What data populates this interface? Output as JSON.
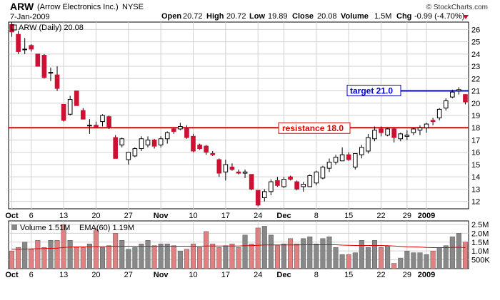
{
  "header": {
    "symbol": "ARW",
    "company": "(Arrow Electronics Inc.)",
    "exchange": "NYSE",
    "date": "7-Jan-2009",
    "open_label": "Open",
    "open": "20.72",
    "high_label": "High",
    "high": "20.72",
    "low_label": "Low",
    "low": "19.89",
    "close_label": "Close",
    "close": "20.08",
    "volume_label": "Volume",
    "volume": "1.5M",
    "chg_label": "Chg",
    "chg": "-0.99 (-4.70%)",
    "brand": "© StockCharts.com"
  },
  "colors": {
    "up_body": "#ffffff",
    "down_body": "#cc1133",
    "candle_edge": "#000000",
    "resistance": "#dd0000",
    "target": "#0000cc",
    "grid": "#d0d0d0",
    "vol_up": "#888888",
    "vol_down": "#e08080",
    "ema": "#dd0000"
  },
  "chart_data": [
    {
      "type": "candlestick",
      "legend": "ARW (Daily) 20.08",
      "ylim": [
        11.4,
        26.6
      ],
      "y_ticks": [
        "12",
        "13",
        "14",
        "15",
        "16",
        "17",
        "18",
        "19",
        "20",
        "21",
        "22",
        "23",
        "24",
        "25",
        "26"
      ],
      "x_ticks": [
        {
          "label": "Oct",
          "index": 0,
          "bold": true
        },
        {
          "label": "6",
          "index": 3,
          "bold": false
        },
        {
          "label": "13",
          "index": 8,
          "bold": false
        },
        {
          "label": "20",
          "index": 13,
          "bold": false
        },
        {
          "label": "27",
          "index": 18,
          "bold": false
        },
        {
          "label": "Nov",
          "index": 23,
          "bold": true
        },
        {
          "label": "10",
          "index": 28,
          "bold": false
        },
        {
          "label": "17",
          "index": 33,
          "bold": false
        },
        {
          "label": "24",
          "index": 38,
          "bold": false
        },
        {
          "label": "Dec",
          "index": 42,
          "bold": true
        },
        {
          "label": "8",
          "index": 47,
          "bold": false
        },
        {
          "label": "15",
          "index": 52,
          "bold": false
        },
        {
          "label": "22",
          "index": 57,
          "bold": false
        },
        {
          "label": "29",
          "index": 61,
          "bold": false
        },
        {
          "label": "2009",
          "index": 64,
          "bold": true
        }
      ],
      "lines": [
        {
          "name": "resistance",
          "value": 18.0,
          "label": "resistance 18.0"
        },
        {
          "name": "target",
          "value": 21.0,
          "label": "target 21.0"
        }
      ],
      "candles": [
        {
          "o": 26.4,
          "h": 26.6,
          "l": 25.4,
          "c": 25.8
        },
        {
          "o": 25.6,
          "h": 25.9,
          "l": 24.0,
          "c": 24.2
        },
        {
          "o": 24.4,
          "h": 25.3,
          "l": 24.0,
          "c": 24.4
        },
        {
          "o": 24.7,
          "h": 24.8,
          "l": 24.2,
          "c": 24.4
        },
        {
          "o": 24.0,
          "h": 24.0,
          "l": 23.0,
          "c": 23.0
        },
        {
          "o": 23.9,
          "h": 24.0,
          "l": 22.0,
          "c": 22.1
        },
        {
          "o": 22.5,
          "h": 22.9,
          "l": 21.8,
          "c": 22.5
        },
        {
          "o": 22.3,
          "h": 23.0,
          "l": 21.0,
          "c": 21.2
        },
        {
          "o": 19.9,
          "h": 19.9,
          "l": 18.5,
          "c": 18.6
        },
        {
          "o": 19.1,
          "h": 20.6,
          "l": 19.0,
          "c": 20.3
        },
        {
          "o": 21.0,
          "h": 21.0,
          "l": 19.8,
          "c": 19.8
        },
        {
          "o": 19.4,
          "h": 19.6,
          "l": 18.7,
          "c": 18.7
        },
        {
          "o": 18.2,
          "h": 18.7,
          "l": 17.5,
          "c": 18.2
        },
        {
          "o": 18.2,
          "h": 18.5,
          "l": 18.0,
          "c": 18.0
        },
        {
          "o": 18.5,
          "h": 19.1,
          "l": 18.1,
          "c": 19.0
        },
        {
          "o": 18.9,
          "h": 19.0,
          "l": 17.9,
          "c": 18.0
        },
        {
          "o": 17.2,
          "h": 17.4,
          "l": 15.5,
          "c": 15.5
        },
        {
          "o": 16.6,
          "h": 17.2,
          "l": 16.4,
          "c": 17.1
        },
        {
          "o": 15.4,
          "h": 15.9,
          "l": 15.0,
          "c": 16.0
        },
        {
          "o": 15.7,
          "h": 16.4,
          "l": 15.6,
          "c": 16.3
        },
        {
          "o": 16.3,
          "h": 17.3,
          "l": 16.1,
          "c": 17.1
        },
        {
          "o": 16.6,
          "h": 17.3,
          "l": 16.4,
          "c": 17.0
        },
        {
          "o": 17.0,
          "h": 17.1,
          "l": 16.3,
          "c": 16.5
        },
        {
          "o": 16.6,
          "h": 17.3,
          "l": 16.4,
          "c": 17.1
        },
        {
          "o": 17.1,
          "h": 17.7,
          "l": 16.7,
          "c": 17.6
        },
        {
          "o": 17.9,
          "h": 18.0,
          "l": 17.5,
          "c": 17.7
        },
        {
          "o": 17.9,
          "h": 18.4,
          "l": 17.8,
          "c": 18.1
        },
        {
          "o": 18.0,
          "h": 18.2,
          "l": 17.1,
          "c": 17.2
        },
        {
          "o": 17.3,
          "h": 17.5,
          "l": 16.0,
          "c": 16.1
        },
        {
          "o": 16.6,
          "h": 16.7,
          "l": 16.2,
          "c": 16.3
        },
        {
          "o": 16.5,
          "h": 16.6,
          "l": 15.8,
          "c": 16.0
        },
        {
          "o": 15.9,
          "h": 16.1,
          "l": 15.7,
          "c": 15.8
        },
        {
          "o": 15.4,
          "h": 15.5,
          "l": 14.0,
          "c": 14.3
        },
        {
          "o": 14.4,
          "h": 15.4,
          "l": 13.7,
          "c": 15.0
        },
        {
          "o": 14.8,
          "h": 15.1,
          "l": 14.5,
          "c": 14.6
        },
        {
          "o": 14.4,
          "h": 14.6,
          "l": 14.2,
          "c": 14.3
        },
        {
          "o": 14.3,
          "h": 14.6,
          "l": 13.9,
          "c": 14.4
        },
        {
          "o": 14.2,
          "h": 14.2,
          "l": 12.9,
          "c": 13.0
        },
        {
          "o": 12.9,
          "h": 12.9,
          "l": 11.6,
          "c": 11.7
        },
        {
          "o": 12.3,
          "h": 13.0,
          "l": 12.0,
          "c": 12.8
        },
        {
          "o": 12.8,
          "h": 13.8,
          "l": 12.5,
          "c": 13.6
        },
        {
          "o": 13.7,
          "h": 14.0,
          "l": 13.2,
          "c": 13.3
        },
        {
          "o": 13.2,
          "h": 14.0,
          "l": 13.1,
          "c": 13.8
        },
        {
          "o": 14.0,
          "h": 14.1,
          "l": 13.7,
          "c": 13.8
        },
        {
          "o": 13.6,
          "h": 13.7,
          "l": 12.9,
          "c": 13.0
        },
        {
          "o": 13.2,
          "h": 13.6,
          "l": 12.8,
          "c": 13.4
        },
        {
          "o": 13.2,
          "h": 14.2,
          "l": 13.2,
          "c": 14.1
        },
        {
          "o": 13.5,
          "h": 14.5,
          "l": 13.3,
          "c": 14.4
        },
        {
          "o": 13.9,
          "h": 14.9,
          "l": 13.8,
          "c": 14.8
        },
        {
          "o": 14.7,
          "h": 15.5,
          "l": 14.4,
          "c": 15.2
        },
        {
          "o": 15.2,
          "h": 15.8,
          "l": 15.0,
          "c": 15.6
        },
        {
          "o": 15.3,
          "h": 16.4,
          "l": 15.3,
          "c": 15.8
        },
        {
          "o": 15.8,
          "h": 16.0,
          "l": 15.3,
          "c": 15.4
        },
        {
          "o": 14.8,
          "h": 15.9,
          "l": 14.6,
          "c": 15.9
        },
        {
          "o": 15.8,
          "h": 16.6,
          "l": 15.5,
          "c": 16.4
        },
        {
          "o": 16.1,
          "h": 17.5,
          "l": 15.9,
          "c": 17.2
        },
        {
          "o": 17.1,
          "h": 18.1,
          "l": 16.9,
          "c": 17.8
        },
        {
          "o": 17.9,
          "h": 18.1,
          "l": 17.3,
          "c": 17.6
        },
        {
          "o": 17.4,
          "h": 18.0,
          "l": 17.3,
          "c": 17.9
        },
        {
          "o": 17.9,
          "h": 18.0,
          "l": 16.8,
          "c": 17.2
        },
        {
          "o": 17.1,
          "h": 17.6,
          "l": 16.9,
          "c": 17.5
        },
        {
          "o": 17.3,
          "h": 17.8,
          "l": 17.0,
          "c": 17.4
        },
        {
          "o": 17.6,
          "h": 18.0,
          "l": 17.4,
          "c": 17.9
        },
        {
          "o": 17.8,
          "h": 18.2,
          "l": 17.4,
          "c": 18.0
        },
        {
          "o": 18.0,
          "h": 18.4,
          "l": 17.6,
          "c": 18.3
        },
        {
          "o": 18.6,
          "h": 18.8,
          "l": 18.2,
          "c": 18.5
        },
        {
          "o": 18.8,
          "h": 19.6,
          "l": 18.6,
          "c": 19.5
        },
        {
          "o": 19.6,
          "h": 20.4,
          "l": 19.4,
          "c": 20.2
        },
        {
          "o": 20.5,
          "h": 21.1,
          "l": 20.4,
          "c": 20.9
        },
        {
          "o": 21.0,
          "h": 21.3,
          "l": 20.7,
          "c": 21.1
        },
        {
          "o": 20.7,
          "h": 20.7,
          "l": 19.9,
          "c": 20.1
        }
      ]
    },
    {
      "type": "bar",
      "legend_volume": "Volume 1.51M",
      "legend_ema": "EMA(60) 1.19M",
      "ylim": [
        0,
        2.7
      ],
      "y_ticks": [
        {
          "label": "2.5M",
          "value": 2.5
        },
        {
          "label": "2.0M",
          "value": 2.0
        },
        {
          "label": "1.5M",
          "value": 1.5
        },
        {
          "label": "1.0M",
          "value": 1.0
        },
        {
          "label": "500K",
          "value": 0.5
        }
      ],
      "x_ticks": [
        "Oct",
        "6",
        "13",
        "20",
        "27",
        "Nov",
        "10",
        "17",
        "24",
        "Dec",
        "8",
        "15",
        "22",
        "29",
        "2009"
      ],
      "values": [
        1.0,
        1.2,
        1.5,
        1.1,
        1.6,
        1.2,
        1.6,
        1.6,
        2.5,
        1.6,
        1.2,
        1.2,
        1.4,
        2.2,
        1.2,
        1.3,
        2.0,
        1.6,
        1.1,
        1.2,
        1.4,
        1.6,
        1.3,
        1.4,
        1.4,
        1.3,
        1.0,
        1.1,
        1.4,
        1.2,
        2.1,
        1.4,
        1.2,
        1.3,
        1.4,
        1.2,
        1.9,
        1.4,
        2.3,
        2.4,
        1.9,
        1.3,
        1.4,
        1.7,
        1.4,
        1.7,
        1.8,
        1.4,
        1.7,
        1.8,
        1.2,
        0.8,
        0.8,
        0.9,
        1.6,
        1.2,
        1.6,
        1.2,
        1.3,
        0.3,
        0.6,
        1.0,
        0.9,
        0.9,
        0.8,
        1.0,
        1.2,
        1.3,
        1.8,
        2.0,
        1.5
      ],
      "ema": [
        1.1,
        1.1,
        1.11,
        1.12,
        1.13,
        1.14,
        1.15,
        1.16,
        1.2,
        1.22,
        1.23,
        1.24,
        1.24,
        1.25,
        1.25,
        1.26,
        1.27,
        1.27,
        1.27,
        1.27,
        1.27,
        1.27,
        1.27,
        1.27,
        1.27,
        1.27,
        1.27,
        1.27,
        1.27,
        1.27,
        1.28,
        1.28,
        1.28,
        1.28,
        1.28,
        1.28,
        1.3,
        1.3,
        1.32,
        1.34,
        1.34,
        1.34,
        1.34,
        1.34,
        1.34,
        1.35,
        1.35,
        1.35,
        1.35,
        1.35,
        1.35,
        1.33,
        1.32,
        1.31,
        1.31,
        1.31,
        1.31,
        1.31,
        1.3,
        1.28,
        1.26,
        1.24,
        1.23,
        1.22,
        1.2,
        1.19,
        1.19,
        1.19,
        1.2,
        1.21,
        1.19
      ]
    }
  ]
}
